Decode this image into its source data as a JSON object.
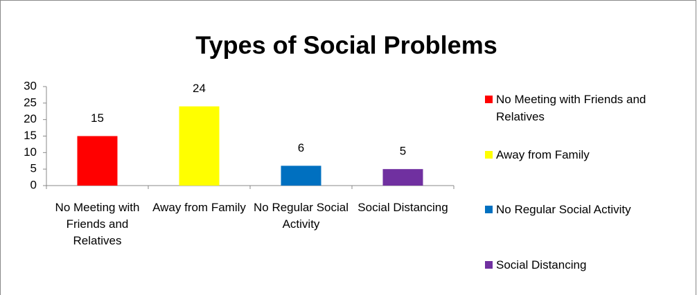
{
  "chart_data": {
    "type": "bar",
    "title": "Types of Social Problems",
    "categories": [
      "No Meeting with Friends and Relatives",
      "Away from Family",
      "No Regular Social Activity",
      "Social Distancing"
    ],
    "values": [
      15,
      24,
      6,
      5
    ],
    "colors": [
      "#ff0000",
      "#ffff00",
      "#0070c0",
      "#7030a0"
    ],
    "ylim": [
      0,
      30
    ],
    "yticks": [
      0,
      5,
      10,
      15,
      20,
      25,
      30
    ],
    "grid": false,
    "legend": "right"
  }
}
